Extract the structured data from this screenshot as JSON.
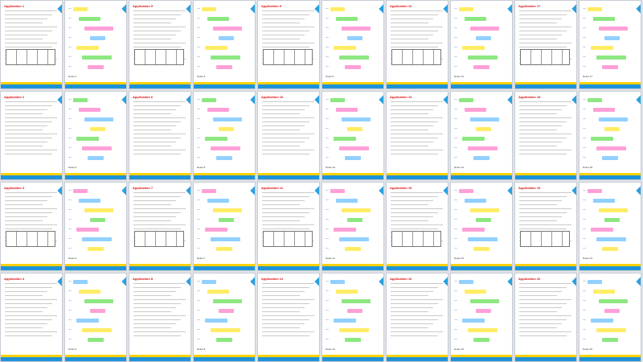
{
  "doc": {
    "columns": [
      {
        "pages": [
          {
            "type": "doc",
            "label": "Application 1"
          },
          {
            "type": "doc",
            "label": "Application 2"
          },
          {
            "type": "doc",
            "label": "Application 3"
          },
          {
            "type": "doc",
            "label": "Application 4"
          }
        ]
      },
      {
        "pages": [
          {
            "type": "hw",
            "label": "Notes 1"
          },
          {
            "type": "hw",
            "label": "Notes 2"
          },
          {
            "type": "hw",
            "label": "Notes 3"
          },
          {
            "type": "hw",
            "label": "Notes 4"
          }
        ]
      },
      {
        "pages": [
          {
            "type": "doc",
            "label": "Application 5"
          },
          {
            "type": "doc",
            "label": "Application 6"
          },
          {
            "type": "doc",
            "label": "Application 7"
          },
          {
            "type": "doc",
            "label": "Application 8"
          }
        ]
      },
      {
        "pages": [
          {
            "type": "hw",
            "label": "Notes 5"
          },
          {
            "type": "hw",
            "label": "Notes 6"
          },
          {
            "type": "hw",
            "label": "Notes 7"
          },
          {
            "type": "hw",
            "label": "Notes 8"
          }
        ]
      },
      {
        "pages": [
          {
            "type": "doc",
            "label": "Application 9"
          },
          {
            "type": "doc",
            "label": "Application 10"
          },
          {
            "type": "doc",
            "label": "Application 11"
          },
          {
            "type": "doc",
            "label": "Application 12"
          }
        ]
      },
      {
        "pages": [
          {
            "type": "hw",
            "label": "Notes 9"
          },
          {
            "type": "hw",
            "label": "Notes 10"
          },
          {
            "type": "hw",
            "label": "Notes 11"
          },
          {
            "type": "hw",
            "label": "Notes 12"
          }
        ]
      },
      {
        "pages": [
          {
            "type": "doc",
            "label": "Application 13"
          },
          {
            "type": "doc",
            "label": "Application 14"
          },
          {
            "type": "doc",
            "label": "Application 15"
          },
          {
            "type": "doc",
            "label": "Application 16"
          }
        ]
      },
      {
        "pages": [
          {
            "type": "hw",
            "label": "Notes 13"
          },
          {
            "type": "hw",
            "label": "Notes 14"
          },
          {
            "type": "hw",
            "label": "Notes 15"
          },
          {
            "type": "hw",
            "label": "Notes 16"
          }
        ]
      },
      {
        "pages": [
          {
            "type": "doc",
            "label": "Application 17"
          },
          {
            "type": "doc",
            "label": "Application 18"
          },
          {
            "type": "doc",
            "label": "Application 19"
          },
          {
            "type": "doc",
            "label": "Application 20"
          }
        ]
      },
      {
        "pages": [
          {
            "type": "hw",
            "label": "Notes 17"
          },
          {
            "type": "hw",
            "label": "Notes 18"
          },
          {
            "type": "hw",
            "label": "Notes 19"
          },
          {
            "type": "hw",
            "label": "Notes 20"
          }
        ]
      }
    ],
    "colors": {
      "title_red": "#d11111",
      "highlight_yellow": "#ffe94a",
      "highlight_green": "#79e36b",
      "highlight_pink": "#ff8fd0",
      "highlight_blue": "#7ec8ff",
      "band_yellow": "#ffd200",
      "band_blue": "#1f93d9"
    }
  }
}
